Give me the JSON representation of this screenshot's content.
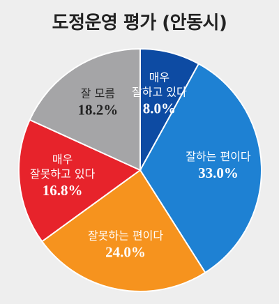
{
  "chart_data": {
    "type": "pie",
    "title": "도정운영 평가 (안동시)",
    "unit": "%",
    "slices": [
      {
        "label_lines": [
          "매우",
          "잘하고 있다"
        ],
        "value": 8.0,
        "value_label": "8.0%",
        "color": "#0d4ba3"
      },
      {
        "label_lines": [
          "잘하는 편이다"
        ],
        "value": 33.0,
        "value_label": "33.0%",
        "color": "#1e81d3"
      },
      {
        "label_lines": [
          "잘못하는 편이다"
        ],
        "value": 24.0,
        "value_label": "24.0%",
        "color": "#f6931e"
      },
      {
        "label_lines": [
          "매우",
          "잘못하고 있다"
        ],
        "value": 16.8,
        "value_label": "16.8%",
        "color": "#e7232b"
      },
      {
        "label_lines": [
          "잘 모름"
        ],
        "value": 18.2,
        "value_label": "18.2%",
        "color": "#a5a5a7"
      }
    ],
    "legend": "none",
    "grid": false
  }
}
